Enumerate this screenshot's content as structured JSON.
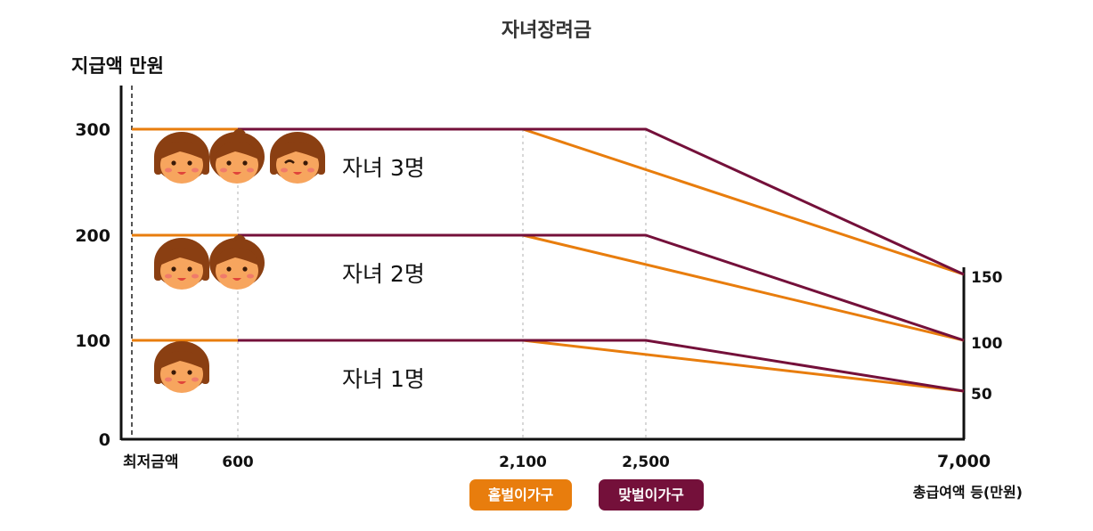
{
  "chart_data": {
    "type": "line",
    "title": "자녀장려금",
    "ylabel": "지급액 만원",
    "xlabel": "총급여액 등(만원)",
    "y_ticks": [
      "0",
      "100",
      "200",
      "300"
    ],
    "x_ticks": [
      {
        "value": 0,
        "label": "최저금액"
      },
      {
        "value": 600,
        "label": "600"
      },
      {
        "value": 2100,
        "label": "2,100"
      },
      {
        "value": 2500,
        "label": "2,500"
      },
      {
        "value": 7000,
        "label": "7,000"
      }
    ],
    "right_ticks": [
      "150",
      "100",
      "50"
    ],
    "xlim": [
      0,
      7000
    ],
    "ylim": [
      0,
      300
    ],
    "groups": [
      {
        "label": "자녀 3명",
        "children": 3,
        "series": [
          {
            "name": "홑벌이가구",
            "color": "#E87D0D",
            "x": [
              0,
              2100,
              7000
            ],
            "y": [
              300,
              300,
              150
            ]
          },
          {
            "name": "맞벌이가구",
            "color": "#74103A",
            "x": [
              600,
              2500,
              7000
            ],
            "y": [
              300,
              300,
              150
            ]
          }
        ]
      },
      {
        "label": "자녀 2명",
        "children": 2,
        "series": [
          {
            "name": "홑벌이가구",
            "color": "#E87D0D",
            "x": [
              0,
              2100,
              7000
            ],
            "y": [
              200,
              200,
              100
            ]
          },
          {
            "name": "맞벌이가구",
            "color": "#74103A",
            "x": [
              600,
              2500,
              7000
            ],
            "y": [
              200,
              200,
              100
            ]
          }
        ]
      },
      {
        "label": "자녀 1명",
        "children": 1,
        "series": [
          {
            "name": "홑벌이가구",
            "color": "#E87D0D",
            "x": [
              0,
              2100,
              7000
            ],
            "y": [
              100,
              100,
              50
            ]
          },
          {
            "name": "맞벌이가구",
            "color": "#74103A",
            "x": [
              600,
              2500,
              7000
            ],
            "y": [
              100,
              100,
              50
            ]
          }
        ]
      }
    ],
    "legend": [
      {
        "name": "홑벌이가구",
        "color": "#E87D0D"
      },
      {
        "name": "맞벌이가구",
        "color": "#74103A"
      }
    ],
    "grid": "vertical dotted at x ticks"
  }
}
